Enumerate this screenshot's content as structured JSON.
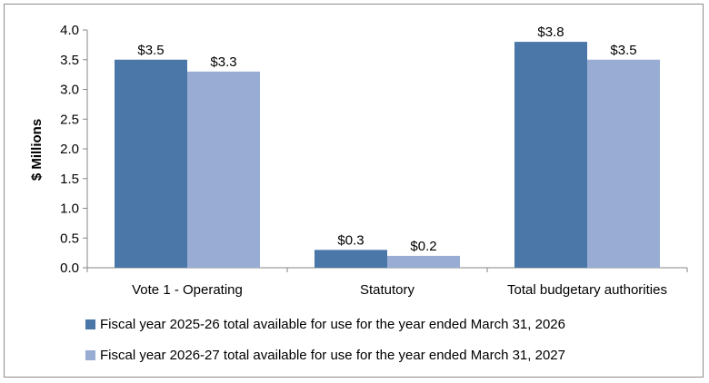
{
  "chart_data": {
    "type": "bar",
    "title": "",
    "xlabel": "",
    "ylabel": "$ Millions",
    "ylim": [
      0,
      4.0
    ],
    "yticks": [
      "0.0",
      "0.5",
      "1.0",
      "1.5",
      "2.0",
      "2.5",
      "3.0",
      "3.5",
      "4.0"
    ],
    "ytick_values": [
      0,
      0.5,
      1.0,
      1.5,
      2.0,
      2.5,
      3.0,
      3.5,
      4.0
    ],
    "categories": [
      "Vote 1 - Operating",
      "Statutory",
      "Total budgetary authorities"
    ],
    "grid": false,
    "legend_position": "bottom",
    "series": [
      {
        "name": "Fiscal year 2025-26 total available for use for the year ended March 31, 2026",
        "values": [
          3.5,
          0.3,
          3.8
        ],
        "labels": [
          "$3.5",
          "$0.3",
          "$3.8"
        ],
        "color": "#4a76a8"
      },
      {
        "name": "Fiscal year 2026-27 total available for use for the year ended March 31, 2027",
        "values": [
          3.3,
          0.2,
          3.5
        ],
        "labels": [
          "$3.3",
          "$0.2",
          "$3.5"
        ],
        "color": "#98acd4"
      }
    ]
  }
}
